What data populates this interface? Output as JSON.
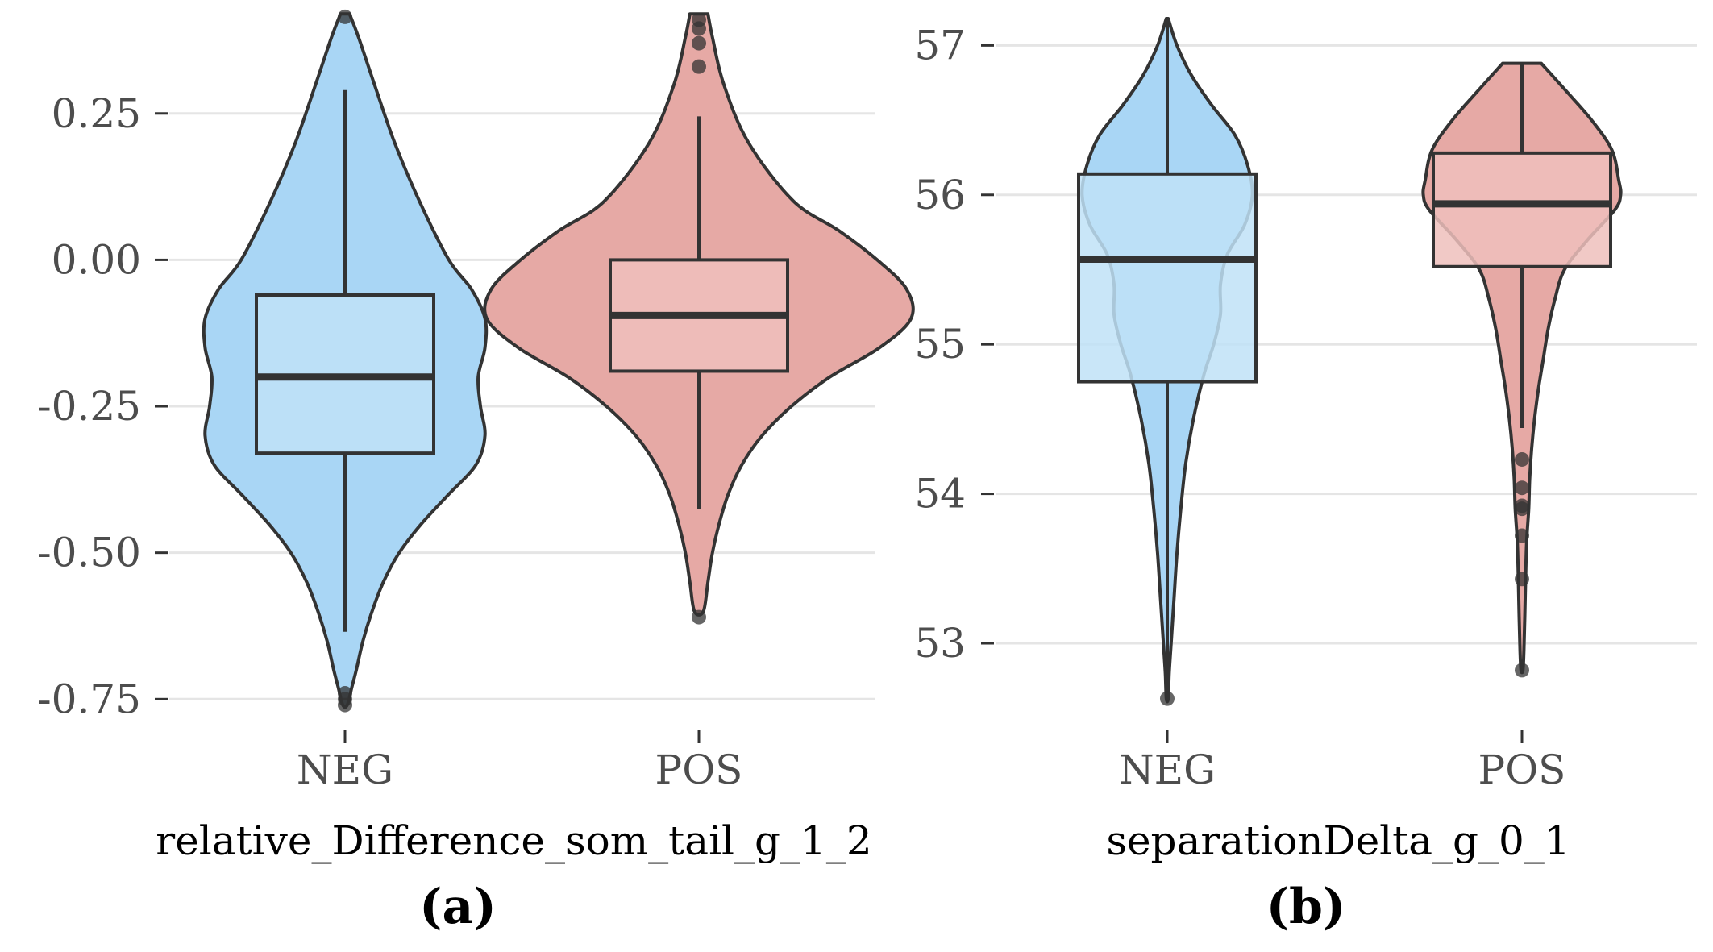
{
  "colors": {
    "NEG_fill": "#a9d6f5",
    "POS_fill": "#e6a9a5",
    "NEG_box": "#bfe2f7",
    "POS_box": "#efbfbc",
    "outline": "#333333",
    "grid": "#e5e5e5",
    "tick_text": "#4d4d4d"
  },
  "chart_data": [
    {
      "type": "violin",
      "panel_label": "(a)",
      "xlabel": "relative_Difference_som_tail_g_1_2",
      "ylabel": "",
      "categories": [
        "NEG",
        "POS"
      ],
      "y_ticks": [
        0.25,
        0.0,
        -0.25,
        -0.5,
        -0.75
      ],
      "y_tick_labels": [
        "0.25",
        "0.00",
        "-0.25",
        "-0.50",
        "-0.75"
      ],
      "ylim": [
        -0.795,
        0.43
      ],
      "grid": "horizontal",
      "legend": "none",
      "series": [
        {
          "category": "NEG",
          "box": {
            "q1": -0.33,
            "median": -0.2,
            "q3": -0.06,
            "whisker_low": -0.635,
            "whisker_high": 0.29
          },
          "outliers": [
            0.415,
            -0.74,
            -0.75,
            -0.76
          ],
          "density": [
            [
              0.42,
              0.02
            ],
            [
              0.38,
              0.06
            ],
            [
              0.3,
              0.13
            ],
            [
              0.2,
              0.22
            ],
            [
              0.1,
              0.33
            ],
            [
              0.0,
              0.46
            ],
            [
              -0.05,
              0.56
            ],
            [
              -0.1,
              0.62
            ],
            [
              -0.15,
              0.62
            ],
            [
              -0.2,
              0.59
            ],
            [
              -0.25,
              0.6
            ],
            [
              -0.3,
              0.62
            ],
            [
              -0.35,
              0.58
            ],
            [
              -0.4,
              0.46
            ],
            [
              -0.45,
              0.34
            ],
            [
              -0.5,
              0.24
            ],
            [
              -0.55,
              0.17
            ],
            [
              -0.6,
              0.12
            ],
            [
              -0.65,
              0.08
            ],
            [
              -0.7,
              0.05
            ],
            [
              -0.73,
              0.03
            ],
            [
              -0.76,
              0.01
            ]
          ]
        },
        {
          "category": "POS",
          "box": {
            "q1": -0.19,
            "median": -0.095,
            "q3": 0.0,
            "whisker_low": -0.425,
            "whisker_high": 0.245
          },
          "outliers": [
            0.41,
            0.395,
            0.37,
            0.33,
            -0.61
          ],
          "density": [
            [
              0.42,
              0.04
            ],
            [
              0.38,
              0.06
            ],
            [
              0.3,
              0.11
            ],
            [
              0.2,
              0.22
            ],
            [
              0.1,
              0.42
            ],
            [
              0.05,
              0.62
            ],
            [
              0.0,
              0.79
            ],
            [
              -0.05,
              0.92
            ],
            [
              -0.1,
              0.94
            ],
            [
              -0.15,
              0.8
            ],
            [
              -0.2,
              0.58
            ],
            [
              -0.25,
              0.41
            ],
            [
              -0.3,
              0.28
            ],
            [
              -0.35,
              0.19
            ],
            [
              -0.4,
              0.13
            ],
            [
              -0.45,
              0.09
            ],
            [
              -0.5,
              0.06
            ],
            [
              -0.55,
              0.04
            ],
            [
              -0.6,
              0.02
            ]
          ]
        }
      ]
    },
    {
      "type": "violin",
      "panel_label": "(b)",
      "xlabel": "separationDelta_g_0_1",
      "ylabel": "",
      "categories": [
        "NEG",
        "POS"
      ],
      "y_ticks": [
        57,
        56,
        55,
        54,
        53
      ],
      "y_tick_labels": [
        "57",
        "56",
        "55",
        "54",
        "53"
      ],
      "ylim": [
        52.45,
        57.25
      ],
      "grid": "horizontal",
      "legend": "none",
      "series": [
        {
          "category": "NEG",
          "box": {
            "q1": 54.75,
            "median": 55.57,
            "q3": 56.14,
            "whisker_low": 52.65,
            "whisker_high": 57.18
          },
          "outliers": [
            52.63
          ],
          "density": [
            [
              57.18,
              0.01
            ],
            [
              57.0,
              0.1
            ],
            [
              56.8,
              0.25
            ],
            [
              56.6,
              0.46
            ],
            [
              56.4,
              0.7
            ],
            [
              56.2,
              0.83
            ],
            [
              56.0,
              0.88
            ],
            [
              55.8,
              0.8
            ],
            [
              55.6,
              0.62
            ],
            [
              55.4,
              0.55
            ],
            [
              55.2,
              0.55
            ],
            [
              55.0,
              0.48
            ],
            [
              54.8,
              0.38
            ],
            [
              54.5,
              0.27
            ],
            [
              54.2,
              0.19
            ],
            [
              53.9,
              0.14
            ],
            [
              53.6,
              0.1
            ],
            [
              53.3,
              0.07
            ],
            [
              53.0,
              0.04
            ],
            [
              52.8,
              0.02
            ],
            [
              52.63,
              0.01
            ]
          ]
        },
        {
          "category": "POS",
          "box": {
            "q1": 55.52,
            "median": 55.94,
            "q3": 56.28,
            "whisker_low": 54.44,
            "whisker_high": 56.88
          },
          "outliers": [
            54.23,
            54.04,
            53.92,
            53.9,
            53.72,
            53.43,
            52.82
          ],
          "density": [
            [
              56.88,
              0.2
            ],
            [
              56.7,
              0.45
            ],
            [
              56.5,
              0.72
            ],
            [
              56.3,
              0.93
            ],
            [
              56.1,
              1.0
            ],
            [
              56.0,
              1.02
            ],
            [
              55.9,
              0.96
            ],
            [
              55.7,
              0.68
            ],
            [
              55.5,
              0.44
            ],
            [
              55.3,
              0.34
            ],
            [
              55.1,
              0.27
            ],
            [
              54.9,
              0.22
            ],
            [
              54.7,
              0.17
            ],
            [
              54.5,
              0.13
            ],
            [
              54.3,
              0.1
            ],
            [
              54.1,
              0.08
            ],
            [
              53.9,
              0.07
            ],
            [
              53.7,
              0.05
            ],
            [
              53.5,
              0.04
            ],
            [
              53.2,
              0.03
            ],
            [
              52.95,
              0.02
            ],
            [
              52.82,
              0.01
            ]
          ]
        }
      ]
    }
  ]
}
